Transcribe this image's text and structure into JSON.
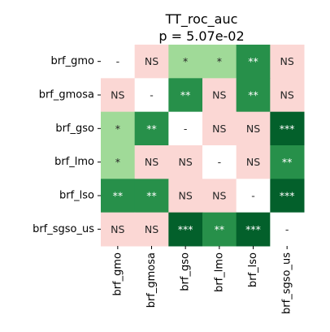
{
  "chart_data": {
    "type": "heatmap",
    "title": "TT_roc_auc",
    "subtitle": "p = 5.07e-02",
    "rows": [
      "brf_gmo",
      "brf_gmosa",
      "brf_gso",
      "brf_lmo",
      "brf_lso",
      "brf_sgso_us"
    ],
    "columns": [
      "brf_gmo",
      "brf_gmosa",
      "brf_gso",
      "brf_lmo",
      "brf_lso",
      "brf_sgso_us"
    ],
    "cells": [
      [
        "-",
        "NS",
        "*",
        "*",
        "**",
        "NS"
      ],
      [
        "NS",
        "-",
        "**",
        "NS",
        "**",
        "NS"
      ],
      [
        "*",
        "**",
        "-",
        "NS",
        "NS",
        "***"
      ],
      [
        "*",
        "NS",
        "NS",
        "-",
        "NS",
        "**"
      ],
      [
        "**",
        "**",
        "NS",
        "NS",
        "-",
        "***"
      ],
      [
        "NS",
        "NS",
        "***",
        "**",
        "***",
        "-"
      ]
    ],
    "legend": "none",
    "grid": false,
    "colors": {
      "-": "#ffffff",
      "NS": "#fbd7d4",
      "*": "#a0da98",
      "**": "#27904a",
      "***": "#03602b"
    },
    "text_colors": {
      "-": "#262626",
      "NS": "#262626",
      "*": "#262626",
      "**": "#ffffff",
      "***": "#ffffff"
    }
  }
}
